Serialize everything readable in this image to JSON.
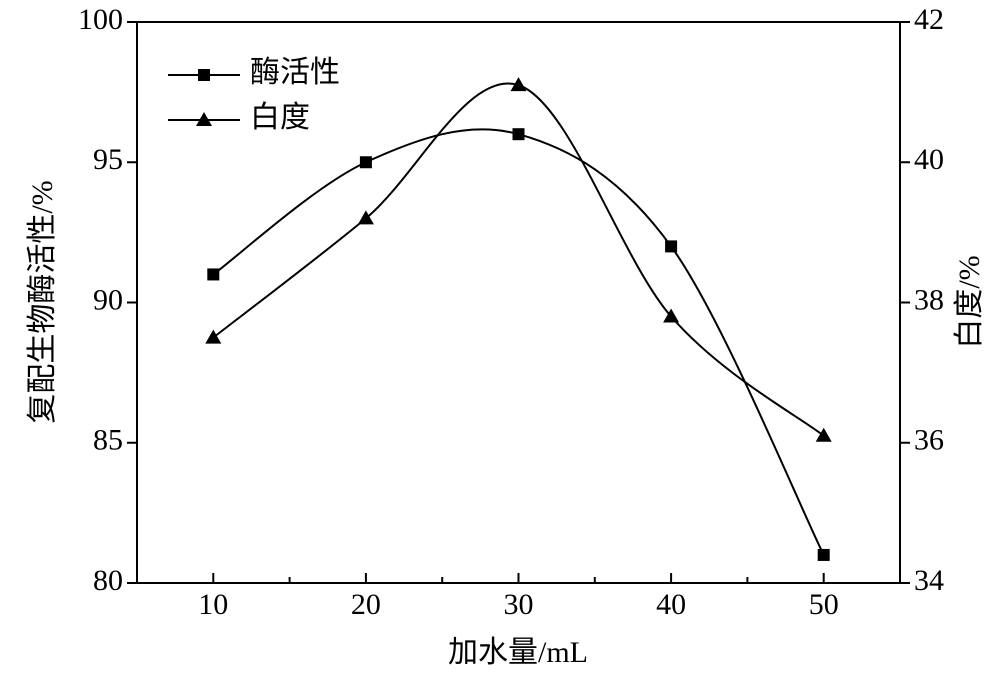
{
  "chart_data": {
    "type": "line",
    "x": [
      10,
      20,
      30,
      40,
      50
    ],
    "xlabel": "加水量/mL",
    "ylabel": "复配生物酶活性/%",
    "y2label": "白度/%",
    "xlim": [
      5,
      55
    ],
    "xticks": [
      10,
      20,
      30,
      40,
      50
    ],
    "xminorticks": [
      15,
      25,
      35,
      45
    ],
    "ylim": [
      80,
      100
    ],
    "yticks": [
      80,
      85,
      90,
      95,
      100
    ],
    "y2lim": [
      34,
      42
    ],
    "y2ticks": [
      34,
      36,
      38,
      40,
      42
    ],
    "legend": "upper left",
    "smooth": true,
    "series": [
      {
        "name": "酶活性",
        "color": "#000000",
        "marker": "square",
        "values": [
          91,
          95,
          96,
          92,
          81
        ]
      },
      {
        "name": "白度",
        "color": "#000000",
        "marker": "triangle",
        "axis": "y2",
        "values": [
          37.5,
          39.2,
          41.1,
          37.8,
          36.1
        ]
      }
    ]
  }
}
